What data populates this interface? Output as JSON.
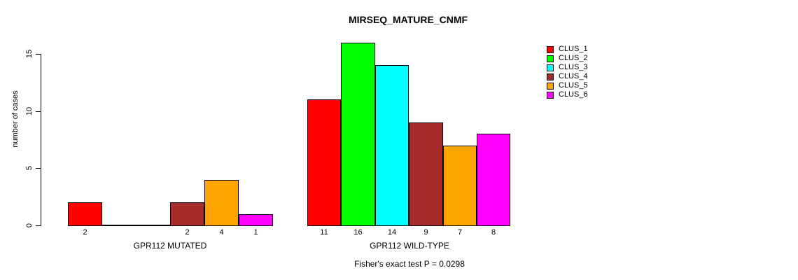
{
  "chart_data": {
    "type": "bar",
    "title": "MIRSEQ_MATURE_CNMF",
    "ylabel": "number of cases",
    "xlabel": "",
    "ylim": [
      0,
      16.5
    ],
    "yticks": [
      0,
      5,
      10,
      15
    ],
    "grid": false,
    "legend_position": "right",
    "series": [
      {
        "name": "CLUS_1",
        "color": "#FF0000"
      },
      {
        "name": "CLUS_2",
        "color": "#00FF00"
      },
      {
        "name": "CLUS_3",
        "color": "#00FFFF"
      },
      {
        "name": "CLUS_4",
        "color": "#A52A2A"
      },
      {
        "name": "CLUS_5",
        "color": "#FFA500"
      },
      {
        "name": "CLUS_6",
        "color": "#FF00FF"
      }
    ],
    "groups": [
      {
        "label": "GPR112 MUTATED",
        "values": [
          2,
          0,
          0,
          2,
          4,
          1
        ]
      },
      {
        "label": "GPR112 WILD-TYPE",
        "values": [
          11,
          16,
          14,
          9,
          7,
          8
        ]
      }
    ],
    "annotation": "Fisher's exact test P = 0.0298"
  }
}
